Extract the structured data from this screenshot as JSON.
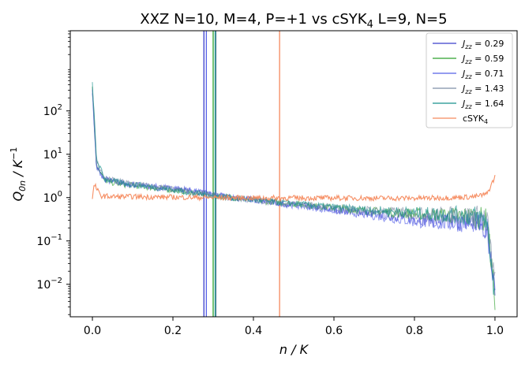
{
  "chart_data": {
    "type": "line",
    "title_main": "XXZ N=10, M=4, P=+1 vs cSYK",
    "title_sub": "4",
    "title_tail": " L=9, N=5",
    "xlabel": "n / K",
    "ylabel_main": "Q",
    "ylabel_sub": "0n",
    "ylabel_tail": " / K",
    "ylabel_sup": "−1",
    "xlim": [
      -0.055,
      1.055
    ],
    "ylim_log10": [
      -2.75,
      3.85
    ],
    "yscale": "log",
    "x_ticks": [
      0.0,
      0.2,
      0.4,
      0.6,
      0.8,
      1.0
    ],
    "x_tick_labels": [
      "0.0",
      "0.2",
      "0.4",
      "0.6",
      "0.8",
      "1.0"
    ],
    "y_tick_labels": [
      {
        "base": "10",
        "exp": "−2"
      },
      {
        "base": "10",
        "exp": "−1"
      },
      {
        "base": "10",
        "exp": "0"
      },
      {
        "base": "10",
        "exp": "1"
      },
      {
        "base": "10",
        "exp": "2"
      }
    ],
    "y_ticks": [
      0.01,
      0.1,
      1,
      10,
      100
    ],
    "grid": false,
    "legend_position": "top-right",
    "series": [
      {
        "name": "J_zz = 0.29",
        "legend_main": "J",
        "legend_sub": "zz",
        "legend_value": " = 0.29",
        "color": "#3b3fcc",
        "x": [
          0.0,
          0.01,
          0.03,
          0.06,
          0.1,
          0.15,
          0.2,
          0.25,
          0.3,
          0.35,
          0.4,
          0.45,
          0.5,
          0.55,
          0.6,
          0.65,
          0.7,
          0.75,
          0.8,
          0.85,
          0.9,
          0.95,
          0.98,
          1.0
        ],
        "y": [
          300,
          5,
          2.6,
          2.2,
          2.0,
          1.7,
          1.6,
          1.4,
          1.15,
          1.0,
          0.9,
          0.78,
          0.68,
          0.6,
          0.52,
          0.47,
          0.42,
          0.38,
          0.33,
          0.3,
          0.28,
          0.25,
          0.18,
          0.01
        ],
        "vline": 0.277
      },
      {
        "name": "J_zz = 0.59",
        "legend_main": "J",
        "legend_sub": "zz",
        "legend_value": " = 0.59",
        "color": "#2ca02c",
        "x": [
          0.0,
          0.01,
          0.03,
          0.06,
          0.1,
          0.15,
          0.2,
          0.25,
          0.3,
          0.35,
          0.4,
          0.45,
          0.5,
          0.55,
          0.6,
          0.65,
          0.7,
          0.75,
          0.8,
          0.85,
          0.9,
          0.95,
          0.98,
          1.0
        ],
        "y": [
          350,
          6,
          2.5,
          2.1,
          1.9,
          1.7,
          1.5,
          1.3,
          1.12,
          1.0,
          0.88,
          0.8,
          0.72,
          0.64,
          0.58,
          0.52,
          0.48,
          0.45,
          0.42,
          0.4,
          0.38,
          0.36,
          0.3,
          0.005
        ],
        "vline": 0.3
      },
      {
        "name": "J_zz = 0.71",
        "legend_main": "J",
        "legend_sub": "zz",
        "legend_value": " = 0.71",
        "color": "#5560e8",
        "x": [
          0.0,
          0.01,
          0.03,
          0.06,
          0.1,
          0.15,
          0.2,
          0.25,
          0.3,
          0.35,
          0.4,
          0.45,
          0.5,
          0.55,
          0.6,
          0.65,
          0.7,
          0.75,
          0.8,
          0.85,
          0.9,
          0.95,
          0.98,
          1.0
        ],
        "y": [
          280,
          5,
          2.7,
          2.3,
          2.0,
          1.8,
          1.7,
          1.45,
          1.15,
          1.0,
          0.88,
          0.76,
          0.66,
          0.58,
          0.5,
          0.44,
          0.38,
          0.33,
          0.28,
          0.26,
          0.26,
          0.27,
          0.2,
          0.01
        ],
        "vline": 0.283
      },
      {
        "name": "J_zz = 1.43",
        "legend_main": "J",
        "legend_sub": "zz",
        "legend_value": " = 1.43",
        "color": "#7f8fa6",
        "x": [
          0.0,
          0.01,
          0.03,
          0.06,
          0.1,
          0.15,
          0.2,
          0.25,
          0.3,
          0.35,
          0.4,
          0.45,
          0.5,
          0.55,
          0.6,
          0.65,
          0.7,
          0.75,
          0.8,
          0.85,
          0.9,
          0.95,
          0.98,
          1.0
        ],
        "y": [
          400,
          7,
          2.8,
          2.4,
          2.1,
          1.8,
          1.55,
          1.3,
          1.1,
          0.98,
          0.87,
          0.79,
          0.72,
          0.65,
          0.59,
          0.54,
          0.5,
          0.47,
          0.44,
          0.42,
          0.4,
          0.38,
          0.32,
          0.01
        ],
        "vline": 0.307
      },
      {
        "name": "J_zz = 1.64",
        "legend_main": "J",
        "legend_sub": "zz",
        "legend_value": " = 1.64",
        "color": "#17918c",
        "x": [
          0.0,
          0.01,
          0.03,
          0.06,
          0.1,
          0.15,
          0.2,
          0.25,
          0.3,
          0.35,
          0.4,
          0.45,
          0.5,
          0.55,
          0.6,
          0.65,
          0.7,
          0.75,
          0.8,
          0.85,
          0.9,
          0.95,
          0.98,
          1.0
        ],
        "y": [
          450,
          8,
          2.7,
          2.3,
          2.0,
          1.75,
          1.5,
          1.28,
          1.1,
          0.98,
          0.88,
          0.8,
          0.73,
          0.66,
          0.6,
          0.55,
          0.51,
          0.48,
          0.45,
          0.42,
          0.4,
          0.37,
          0.3,
          0.005
        ],
        "vline": 0.305
      },
      {
        "name": "cSYK_4",
        "legend_main": "cSYK",
        "legend_sub": "4",
        "legend_value": "",
        "color": "#f58a5e",
        "x": [
          0.0,
          0.005,
          0.02,
          0.05,
          0.1,
          0.2,
          0.3,
          0.4,
          0.5,
          0.6,
          0.7,
          0.8,
          0.85,
          0.9,
          0.95,
          0.98,
          1.0
        ],
        "y": [
          1.0,
          2.0,
          1.1,
          1.05,
          1.05,
          1.02,
          1.0,
          0.98,
          0.98,
          0.98,
          0.97,
          0.97,
          0.98,
          1.0,
          1.05,
          1.2,
          3.0
        ],
        "vline": 0.465
      }
    ]
  }
}
